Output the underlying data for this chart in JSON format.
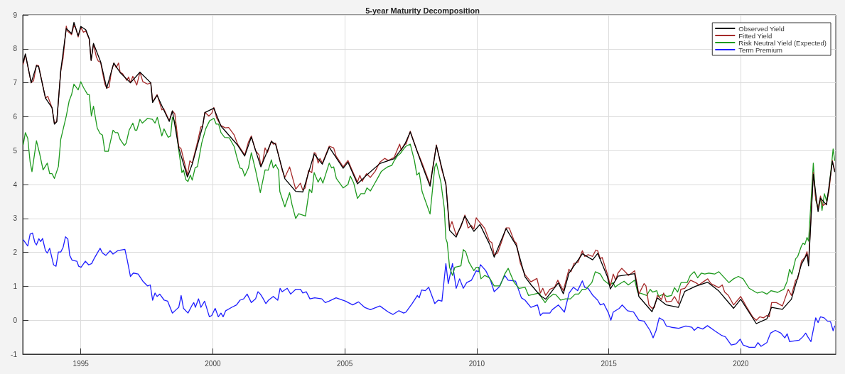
{
  "chart_data": {
    "type": "line",
    "title": "5-year Maturity Decomposition",
    "xlim": [
      1992.8,
      2023.6
    ],
    "xticks": [
      1995,
      2000,
      2005,
      2010,
      2015,
      2020
    ],
    "ylim": [
      -1,
      9
    ],
    "yticks": [
      -1,
      0,
      1,
      2,
      3,
      4,
      5,
      6,
      7,
      8,
      9
    ],
    "grid": true,
    "legend": "top right",
    "marker": "none",
    "line_style": "solid",
    "series": [
      {
        "name": "Observed Yield",
        "color": "#000000",
        "x": [
          1992.82,
          1992.9,
          1993.12,
          1993.32,
          1993.4,
          1993.66,
          1993.91,
          1994.0,
          1994.09,
          1994.24,
          1994.45,
          1994.65,
          1994.74,
          1994.9,
          1995.0,
          1995.19,
          1995.32,
          1995.39,
          1995.48,
          1995.75,
          1995.98,
          1996.25,
          1996.49,
          1996.88,
          1997.24,
          1997.65,
          1997.72,
          1997.89,
          1998.14,
          1998.35,
          1998.47,
          1998.71,
          1999.04,
          1999.22,
          1999.61,
          1999.7,
          2000.04,
          2000.31,
          2000.94,
          2001.21,
          2001.46,
          2001.82,
          2002.22,
          2002.38,
          2002.73,
          2003.14,
          2003.41,
          2003.84,
          2004.15,
          2004.41,
          2004.94,
          2005.12,
          2005.48,
          2005.82,
          2006.33,
          2006.87,
          2007.26,
          2007.48,
          2007.93,
          2008.23,
          2008.47,
          2008.83,
          2008.97,
          2009.22,
          2009.55,
          2009.89,
          2010.12,
          2010.48,
          2010.66,
          2011.11,
          2011.5,
          2011.83,
          2012.05,
          2012.41,
          2012.61,
          2013.09,
          2013.28,
          2013.49,
          2014.0,
          2014.39,
          2014.58,
          2014.95,
          2015.06,
          2015.35,
          2015.98,
          2016.14,
          2016.64,
          2016.84,
          2017.18,
          2017.64,
          2017.88,
          2018.29,
          2018.75,
          2019.17,
          2019.73,
          2020.0,
          2020.59,
          2020.99,
          2021.17,
          2021.58,
          2021.92,
          2022.3,
          2022.51,
          2022.57,
          2022.75,
          2022.93,
          2023.02,
          2023.25,
          2023.47,
          2023.56
        ],
        "values": [
          7.6,
          7.85,
          7.0,
          7.5,
          7.48,
          6.55,
          6.26,
          5.78,
          5.85,
          7.36,
          8.6,
          8.45,
          8.78,
          8.38,
          8.66,
          8.56,
          8.3,
          7.66,
          8.16,
          7.62,
          6.84,
          7.58,
          7.3,
          7.0,
          7.31,
          7.0,
          6.42,
          6.63,
          6.2,
          5.86,
          6.17,
          5.08,
          4.22,
          4.6,
          5.7,
          6.12,
          6.25,
          5.72,
          5.16,
          4.84,
          5.4,
          4.52,
          5.27,
          5.18,
          4.17,
          3.8,
          3.78,
          4.9,
          4.6,
          5.1,
          4.48,
          4.66,
          4.02,
          4.27,
          4.62,
          4.76,
          5.16,
          5.55,
          4.57,
          3.95,
          5.15,
          4.0,
          2.65,
          2.45,
          3.07,
          2.62,
          2.82,
          2.25,
          1.86,
          2.7,
          2.2,
          1.28,
          1.05,
          0.72,
          0.62,
          1.1,
          0.78,
          1.38,
          1.96,
          1.78,
          1.97,
          1.28,
          0.92,
          1.3,
          1.37,
          0.7,
          0.25,
          0.66,
          0.45,
          0.38,
          0.85,
          1.0,
          1.12,
          0.86,
          0.35,
          0.62,
          -0.1,
          0.04,
          0.38,
          0.32,
          0.62,
          1.65,
          1.95,
          1.6,
          4.3,
          3.2,
          3.6,
          3.4,
          4.68,
          4.38
        ]
      },
      {
        "name": "Fitted Yield",
        "color": "#a52a2a",
        "x": [
          1992.82,
          1992.9,
          1993.12,
          1993.21,
          1993.32,
          1993.4,
          1993.66,
          1993.75,
          1993.91,
          1994.0,
          1994.09,
          1994.24,
          1994.33,
          1994.45,
          1994.49,
          1994.65,
          1994.74,
          1994.81,
          1994.9,
          1995.0,
          1995.1,
          1995.19,
          1995.32,
          1995.39,
          1995.48,
          1995.59,
          1995.66,
          1995.75,
          1995.91,
          1995.98,
          1996.07,
          1996.16,
          1996.25,
          1996.34,
          1996.43,
          1996.49,
          1996.58,
          1996.74,
          1996.81,
          1996.88,
          1996.97,
          1997.12,
          1997.24,
          1997.35,
          1997.53,
          1997.65,
          1997.72,
          1997.89,
          1998.07,
          1998.14,
          1998.35,
          1998.47,
          1998.56,
          1998.71,
          1998.8,
          1999.04,
          1999.13,
          1999.22,
          1999.42,
          1999.55,
          1999.61,
          1999.7,
          1999.85,
          1999.96,
          2000.04,
          2000.15,
          2000.31,
          2000.47,
          2000.6,
          2000.81,
          2000.94,
          2001.21,
          2001.35,
          2001.46,
          2001.62,
          2001.75,
          2001.82,
          2001.89,
          2001.98,
          2002.07,
          2002.22,
          2002.29,
          2002.38,
          2002.63,
          2002.73,
          2002.91,
          2003.14,
          2003.32,
          2003.41,
          2003.5,
          2003.63,
          2003.75,
          2003.84,
          2003.9,
          2003.99,
          2004.06,
          2004.15,
          2004.41,
          2004.58,
          2004.67,
          2004.94,
          2005.12,
          2005.28,
          2005.48,
          2005.57,
          2005.66,
          2005.82,
          2005.97,
          2006.15,
          2006.33,
          2006.51,
          2006.65,
          2006.87,
          2007.08,
          2007.14,
          2007.26,
          2007.32,
          2007.48,
          2007.73,
          2007.93,
          2008.23,
          2008.47,
          2008.68,
          2008.83,
          2008.97,
          2009.06,
          2009.22,
          2009.4,
          2009.55,
          2009.67,
          2009.8,
          2009.89,
          2009.98,
          2010.12,
          2010.3,
          2010.48,
          2010.57,
          2010.66,
          2010.79,
          2010.93,
          2011.11,
          2011.23,
          2011.42,
          2011.5,
          2011.65,
          2011.83,
          2012.05,
          2012.28,
          2012.41,
          2012.5,
          2012.61,
          2012.77,
          2012.95,
          2013.07,
          2013.28,
          2013.49,
          2013.57,
          2013.68,
          2013.84,
          2014.0,
          2014.09,
          2014.22,
          2014.39,
          2014.51,
          2014.58,
          2014.68,
          2014.75,
          2014.95,
          2015.06,
          2015.17,
          2015.26,
          2015.35,
          2015.49,
          2015.67,
          2015.74,
          2015.87,
          2015.98,
          2016.14,
          2016.34,
          2016.41,
          2016.52,
          2016.64,
          2016.73,
          2016.84,
          2017.0,
          2017.08,
          2017.18,
          2017.38,
          2017.49,
          2017.64,
          2017.73,
          2017.88,
          2018.1,
          2018.29,
          2018.42,
          2018.54,
          2018.75,
          2018.87,
          2019.17,
          2019.3,
          2019.39,
          2019.53,
          2019.73,
          2020.0,
          2020.23,
          2020.45,
          2020.59,
          2020.72,
          2020.86,
          2020.99,
          2021.08,
          2021.17,
          2021.35,
          2021.58,
          2021.8,
          2021.92,
          2022.08,
          2022.16,
          2022.3,
          2022.43,
          2022.51,
          2022.57,
          2022.75,
          2022.84,
          2022.93,
          2023.02,
          2023.11,
          2023.25,
          2023.34,
          2023.47,
          2023.56
        ],
        "values": [
          7.55,
          7.83,
          7.0,
          7.06,
          7.52,
          7.5,
          6.55,
          6.6,
          6.26,
          5.8,
          5.87,
          7.34,
          7.73,
          8.67,
          8.53,
          8.42,
          8.7,
          8.6,
          8.35,
          8.63,
          8.49,
          8.53,
          8.28,
          7.66,
          8.14,
          7.76,
          7.64,
          7.6,
          6.96,
          6.84,
          6.87,
          7.34,
          7.58,
          7.45,
          7.58,
          7.31,
          7.27,
          7.07,
          7.17,
          7.0,
          7.19,
          6.93,
          7.31,
          7.03,
          6.96,
          7.0,
          6.44,
          6.65,
          6.2,
          6.24,
          5.88,
          6.17,
          6.09,
          5.12,
          5.05,
          4.28,
          4.7,
          4.63,
          5.25,
          5.7,
          5.7,
          6.13,
          6.02,
          6.1,
          6.27,
          5.95,
          5.74,
          5.67,
          5.68,
          5.46,
          5.19,
          4.87,
          5.25,
          5.43,
          5.0,
          4.87,
          4.56,
          4.66,
          5.08,
          4.94,
          5.29,
          5.19,
          5.22,
          4.42,
          4.21,
          4.52,
          3.86,
          4.04,
          3.83,
          3.9,
          4.42,
          4.35,
          4.94,
          4.92,
          4.63,
          4.77,
          4.63,
          5.13,
          5.08,
          4.84,
          4.52,
          4.71,
          4.42,
          4.07,
          4.27,
          4.09,
          4.32,
          4.21,
          4.39,
          4.66,
          4.77,
          4.71,
          4.8,
          5.19,
          5.01,
          5.19,
          5.19,
          5.57,
          5.01,
          4.63,
          4.0,
          5.17,
          4.42,
          4.04,
          2.72,
          2.91,
          2.51,
          2.75,
          3.1,
          2.72,
          2.79,
          2.69,
          3.02,
          2.88,
          2.71,
          2.33,
          2.29,
          1.92,
          1.98,
          2.29,
          2.72,
          2.72,
          2.33,
          2.27,
          1.68,
          1.34,
          1.13,
          1.23,
          0.8,
          0.94,
          0.73,
          0.91,
          0.97,
          1.18,
          0.87,
          1.5,
          1.43,
          1.67,
          1.71,
          2.05,
          1.88,
          1.93,
          1.88,
          2.07,
          2.05,
          1.81,
          1.85,
          1.36,
          1.01,
          1.36,
          1.18,
          1.39,
          1.53,
          1.39,
          1.32,
          1.39,
          1.46,
          0.77,
          1.08,
          1.01,
          0.45,
          0.35,
          0.38,
          0.73,
          0.61,
          0.8,
          0.54,
          0.56,
          0.7,
          0.49,
          0.91,
          0.94,
          1.18,
          1.11,
          1.04,
          1.11,
          1.22,
          1.08,
          0.96,
          1.04,
          0.83,
          0.73,
          0.45,
          0.7,
          0.38,
          0.1,
          0.0,
          0.1,
          0.07,
          0.14,
          0.1,
          0.52,
          0.52,
          0.42,
          0.91,
          0.73,
          1.18,
          1.22,
          1.74,
          1.85,
          2.02,
          1.71,
          4.35,
          3.59,
          3.27,
          3.66,
          3.38,
          3.45,
          3.8,
          4.71,
          4.42
        ]
      },
      {
        "name": "Risk Neutral Yield (Expected)",
        "color": "#1f9a1f",
        "x": [
          1992.82,
          1992.9,
          1992.99,
          1993.08,
          1993.15,
          1993.32,
          1993.44,
          1993.57,
          1993.73,
          1993.82,
          1993.91,
          1994.0,
          1994.15,
          1994.24,
          1994.45,
          1994.56,
          1994.65,
          1994.74,
          1994.9,
          1995.0,
          1995.1,
          1995.26,
          1995.32,
          1995.4,
          1995.48,
          1995.62,
          1995.73,
          1995.82,
          1995.91,
          1996.04,
          1996.22,
          1996.31,
          1996.4,
          1996.49,
          1996.65,
          1996.72,
          1996.83,
          1996.97,
          1997.06,
          1997.12,
          1997.24,
          1997.33,
          1997.53,
          1997.71,
          1997.81,
          1997.9,
          1998.07,
          1998.15,
          1998.31,
          1998.4,
          1998.47,
          1998.59,
          1998.71,
          1998.83,
          1998.89,
          1998.98,
          1999.06,
          1999.15,
          1999.22,
          1999.33,
          1999.42,
          1999.58,
          1999.73,
          1999.88,
          2000.04,
          2000.13,
          2000.22,
          2000.31,
          2000.45,
          2000.62,
          2000.81,
          2000.9,
          2001.03,
          2001.12,
          2001.21,
          2001.35,
          2001.46,
          2001.62,
          2001.8,
          2001.98,
          2002.1,
          2002.22,
          2002.29,
          2002.38,
          2002.49,
          2002.54,
          2002.73,
          2002.91,
          2003.0,
          2003.14,
          2003.25,
          2003.41,
          2003.51,
          2003.66,
          2003.75,
          2003.84,
          2003.99,
          2004.08,
          2004.17,
          2004.41,
          2004.5,
          2004.58,
          2004.68,
          2004.94,
          2005.12,
          2005.21,
          2005.34,
          2005.48,
          2005.61,
          2005.75,
          2005.84,
          2005.97,
          2006.11,
          2006.24,
          2006.38,
          2006.51,
          2006.65,
          2006.78,
          2006.87,
          2006.99,
          2007.1,
          2007.23,
          2007.32,
          2007.48,
          2007.64,
          2007.73,
          2007.82,
          2007.93,
          2008.09,
          2008.23,
          2008.41,
          2008.47,
          2008.64,
          2008.77,
          2008.83,
          2008.88,
          2008.97,
          2009.08,
          2009.17,
          2009.4,
          2009.49,
          2009.58,
          2009.71,
          2009.89,
          2009.98,
          2010.07,
          2010.16,
          2010.3,
          2010.48,
          2010.66,
          2010.88,
          2011.06,
          2011.19,
          2011.28,
          2011.42,
          2011.6,
          2011.83,
          2011.96,
          2012.19,
          2012.37,
          2012.46,
          2012.59,
          2012.72,
          2012.9,
          2013.0,
          2013.18,
          2013.36,
          2013.55,
          2013.73,
          2013.86,
          2014.0,
          2014.13,
          2014.36,
          2014.49,
          2014.68,
          2014.81,
          2015.04,
          2015.17,
          2015.24,
          2015.35,
          2015.58,
          2015.74,
          2015.98,
          2016.1,
          2016.3,
          2016.44,
          2016.57,
          2016.66,
          2016.82,
          2016.89,
          2017.07,
          2017.2,
          2017.38,
          2017.49,
          2017.61,
          2017.74,
          2017.97,
          2018.09,
          2018.24,
          2018.37,
          2018.51,
          2018.64,
          2018.78,
          2019.01,
          2019.17,
          2019.3,
          2019.55,
          2019.73,
          2019.91,
          2020.09,
          2020.32,
          2020.63,
          2020.81,
          2020.99,
          2021.15,
          2021.4,
          2021.63,
          2021.76,
          2021.85,
          2021.94,
          2022.08,
          2022.16,
          2022.3,
          2022.36,
          2022.43,
          2022.51,
          2022.57,
          2022.75,
          2022.84,
          2022.93,
          2023.02,
          2023.08,
          2023.17,
          2023.25,
          2023.34,
          2023.5,
          2023.56
        ],
        "values": [
          5.18,
          5.53,
          5.36,
          4.66,
          4.38,
          5.29,
          4.91,
          4.43,
          4.63,
          4.32,
          4.32,
          4.18,
          4.53,
          5.33,
          6.02,
          6.47,
          6.65,
          6.96,
          6.79,
          7.03,
          6.86,
          6.65,
          6.65,
          6.02,
          6.31,
          5.67,
          5.5,
          5.46,
          4.98,
          4.98,
          5.6,
          5.53,
          5.53,
          5.33,
          5.15,
          5.22,
          5.6,
          5.81,
          5.6,
          5.6,
          5.92,
          5.81,
          5.95,
          5.92,
          5.81,
          5.98,
          5.43,
          5.64,
          5.39,
          5.43,
          5.98,
          5.81,
          5.01,
          4.35,
          4.43,
          4.14,
          4.09,
          4.28,
          4.13,
          4.49,
          4.53,
          5.22,
          5.64,
          5.88,
          5.95,
          5.78,
          5.78,
          5.53,
          5.39,
          5.38,
          5.12,
          4.84,
          4.49,
          4.46,
          4.25,
          4.49,
          4.94,
          4.42,
          3.76,
          4.43,
          4.42,
          4.73,
          4.49,
          4.59,
          4.43,
          3.79,
          3.34,
          3.76,
          3.41,
          3.0,
          3.14,
          3.1,
          3.07,
          3.86,
          3.76,
          4.35,
          4.07,
          4.21,
          4.04,
          4.63,
          4.49,
          4.52,
          4.18,
          3.9,
          4.0,
          4.25,
          4.04,
          3.59,
          3.73,
          3.73,
          3.9,
          3.81,
          4.0,
          4.18,
          4.38,
          4.46,
          4.53,
          4.56,
          4.7,
          4.84,
          4.91,
          5.05,
          5.13,
          5.19,
          4.7,
          4.28,
          4.35,
          3.79,
          3.44,
          3.13,
          4.52,
          4.63,
          4.07,
          3.3,
          2.4,
          2.29,
          1.56,
          1.32,
          1.56,
          1.6,
          2.08,
          2.02,
          1.7,
          1.46,
          1.56,
          1.56,
          1.22,
          1.32,
          1.25,
          1.01,
          1.01,
          1.36,
          1.53,
          1.36,
          1.11,
          0.94,
          0.97,
          0.73,
          0.77,
          0.8,
          0.66,
          0.52,
          0.66,
          0.77,
          0.75,
          0.59,
          0.63,
          0.63,
          0.77,
          0.77,
          0.91,
          0.91,
          1.11,
          1.43,
          1.36,
          1.18,
          1.04,
          1.11,
          0.97,
          1.04,
          1.15,
          1.04,
          1.18,
          0.82,
          0.77,
          0.73,
          0.91,
          0.83,
          0.87,
          0.7,
          0.77,
          0.7,
          0.73,
          0.96,
          0.83,
          1.11,
          1.11,
          1.32,
          1.43,
          1.25,
          1.39,
          1.36,
          1.39,
          1.36,
          1.43,
          1.32,
          1.11,
          1.22,
          1.29,
          1.22,
          0.94,
          0.8,
          0.84,
          0.77,
          0.87,
          0.82,
          0.91,
          1.15,
          1.5,
          1.36,
          1.81,
          1.88,
          2.19,
          2.27,
          2.23,
          2.44,
          2.33,
          4.63,
          3.55,
          3.31,
          3.62,
          3.24,
          3.73,
          3.52,
          3.83,
          5.05,
          4.71
        ]
      },
      {
        "name": "Term Premium",
        "color": "#1f1fff",
        "x": [
          1992.82,
          1992.99,
          1993.08,
          1993.17,
          1993.26,
          1993.32,
          1993.41,
          1993.48,
          1993.55,
          1993.66,
          1993.73,
          1993.82,
          1993.97,
          1994.06,
          1994.15,
          1994.24,
          1994.33,
          1994.42,
          1994.51,
          1994.58,
          1994.67,
          1994.85,
          1994.92,
          1995.01,
          1995.17,
          1995.3,
          1995.41,
          1995.5,
          1995.73,
          1995.82,
          1995.95,
          1996.11,
          1996.22,
          1996.4,
          1996.67,
          1996.76,
          1996.88,
          1996.99,
          1997.17,
          1997.35,
          1997.53,
          1997.63,
          1997.72,
          1997.81,
          1997.89,
          1997.99,
          1998.16,
          1998.29,
          1998.47,
          1998.61,
          1998.71,
          1998.8,
          1998.89,
          1999.06,
          1999.22,
          1999.28,
          1999.34,
          1999.46,
          1999.55,
          1999.69,
          1999.87,
          1999.96,
          2000.09,
          2000.21,
          2000.31,
          2000.39,
          2000.49,
          2000.72,
          2000.9,
          2001.03,
          2001.17,
          2001.3,
          2001.46,
          2001.62,
          2001.71,
          2001.8,
          2001.89,
          2002.01,
          2002.11,
          2002.29,
          2002.46,
          2002.55,
          2002.63,
          2002.82,
          2002.95,
          2003.14,
          2003.32,
          2003.41,
          2003.54,
          2003.68,
          2003.86,
          2004.13,
          2004.26,
          2004.4,
          2004.67,
          2005.03,
          2005.3,
          2005.52,
          2005.75,
          2005.97,
          2006.33,
          2006.65,
          2006.83,
          2007.05,
          2007.23,
          2007.32,
          2007.55,
          2007.75,
          2007.82,
          2007.91,
          2008.05,
          2008.18,
          2008.41,
          2008.54,
          2008.68,
          2008.83,
          2008.92,
          2009.08,
          2009.22,
          2009.35,
          2009.49,
          2009.62,
          2009.8,
          2009.98,
          2010.07,
          2010.14,
          2010.34,
          2010.52,
          2010.66,
          2010.84,
          2011.06,
          2011.19,
          2011.47,
          2011.69,
          2011.83,
          2012.05,
          2012.3,
          2012.41,
          2012.5,
          2012.77,
          2012.86,
          2013.09,
          2013.32,
          2013.5,
          2013.66,
          2013.82,
          2014.0,
          2014.09,
          2014.22,
          2014.4,
          2014.58,
          2014.68,
          2014.81,
          2014.99,
          2015.08,
          2015.17,
          2015.4,
          2015.51,
          2015.71,
          2015.94,
          2016.14,
          2016.34,
          2016.57,
          2016.68,
          2016.79,
          2016.91,
          2017.07,
          2017.18,
          2017.38,
          2017.65,
          2017.92,
          2018.15,
          2018.24,
          2018.37,
          2018.56,
          2018.74,
          2019.01,
          2019.28,
          2019.42,
          2019.64,
          2019.82,
          2019.98,
          2020.09,
          2020.32,
          2020.54,
          2020.65,
          2020.77,
          2020.99,
          2021.13,
          2021.31,
          2021.52,
          2021.67,
          2021.76,
          2021.85,
          2022.21,
          2022.35,
          2022.46,
          2022.55,
          2022.66,
          2022.84,
          2022.93,
          2023.02,
          2023.16,
          2023.29,
          2023.4,
          2023.5,
          2023.56
        ],
        "values": [
          2.37,
          2.19,
          2.54,
          2.57,
          2.29,
          2.22,
          2.4,
          2.32,
          2.41,
          2.05,
          1.98,
          2.12,
          1.63,
          1.59,
          2.01,
          2.01,
          2.15,
          2.46,
          2.39,
          1.91,
          1.77,
          1.74,
          1.59,
          1.56,
          1.74,
          1.63,
          1.67,
          1.81,
          2.12,
          1.98,
          1.91,
          2.05,
          1.95,
          2.05,
          2.09,
          1.77,
          1.29,
          1.39,
          1.36,
          1.15,
          1.01,
          1.04,
          0.59,
          0.8,
          0.7,
          0.77,
          0.59,
          0.56,
          0.21,
          0.31,
          0.38,
          0.73,
          0.35,
          0.21,
          0.45,
          0.52,
          0.38,
          0.63,
          0.38,
          0.56,
          0.1,
          0.14,
          0.35,
          0.1,
          0.21,
          0.1,
          0.28,
          0.38,
          0.45,
          0.59,
          0.63,
          0.77,
          0.52,
          0.63,
          0.84,
          0.77,
          0.66,
          0.49,
          0.59,
          0.7,
          0.59,
          0.94,
          0.84,
          0.94,
          0.77,
          0.91,
          0.91,
          0.8,
          0.84,
          0.63,
          0.66,
          0.63,
          0.52,
          0.56,
          0.66,
          0.56,
          0.45,
          0.54,
          0.38,
          0.31,
          0.42,
          0.24,
          0.17,
          0.28,
          0.21,
          0.24,
          0.49,
          0.73,
          0.66,
          0.89,
          0.87,
          0.97,
          0.49,
          0.59,
          0.56,
          1.67,
          1.08,
          1.67,
          0.94,
          1.22,
          0.94,
          1.11,
          1.18,
          1.46,
          1.43,
          1.64,
          1.46,
          1.18,
          0.84,
          0.97,
          1.32,
          1.18,
          1.15,
          0.66,
          0.59,
          0.38,
          0.45,
          0.14,
          0.21,
          0.21,
          0.31,
          0.45,
          0.24,
          0.8,
          0.97,
          0.87,
          1.16,
          0.97,
          0.94,
          0.73,
          0.59,
          0.45,
          0.49,
          0.21,
          0.0,
          0.24,
          0.35,
          0.45,
          0.28,
          0.24,
          0.0,
          -0.03,
          -0.31,
          -0.52,
          -0.31,
          0.07,
          0.0,
          -0.17,
          -0.21,
          -0.24,
          -0.17,
          -0.21,
          -0.3,
          -0.21,
          -0.26,
          -0.16,
          -0.31,
          -0.45,
          -0.49,
          -0.73,
          -0.7,
          -0.56,
          -0.73,
          -0.8,
          -0.8,
          -0.66,
          -0.77,
          -0.66,
          -0.38,
          -0.3,
          -0.38,
          -0.52,
          -0.4,
          -0.63,
          -0.59,
          -0.49,
          -0.38,
          -0.5,
          -0.63,
          0.07,
          -0.07,
          0.1,
          0.07,
          -0.03,
          -0.04,
          -0.31,
          -0.17
        ]
      }
    ]
  }
}
